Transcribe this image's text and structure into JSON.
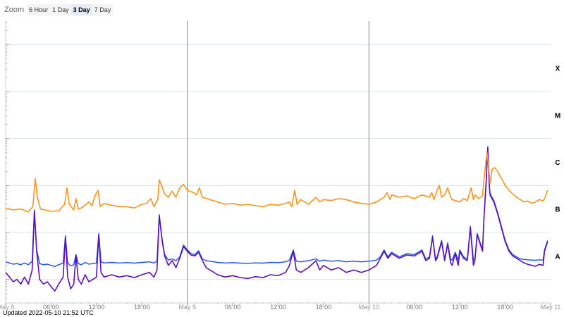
{
  "zoom": {
    "label": "Zoom",
    "buttons": [
      "6 Hour",
      "1 Day",
      "3 Day",
      "7 Day"
    ],
    "active": "3 Day"
  },
  "updated_text": "Updated 2022-05-10 21:52 UTC",
  "colors": {
    "series_long": "#F7941D",
    "series_short": "#5A11B8",
    "series_short_alt": "#1E4FE6",
    "grid": "#dde3ef",
    "day_divider": "#888888",
    "axis_text": "#777777",
    "axis_text_major": "#999999"
  },
  "chart_data": {
    "type": "line",
    "title": "",
    "xlabel": "",
    "ylabel": "",
    "x_range_hours": [
      0,
      72
    ],
    "x_ticks": [
      {
        "hour": 0,
        "label": "May 8",
        "major": true
      },
      {
        "hour": 6,
        "label": "06:00",
        "major": false
      },
      {
        "hour": 12,
        "label": "12:00",
        "major": false
      },
      {
        "hour": 18,
        "label": "18:00",
        "major": false
      },
      {
        "hour": 24,
        "label": "May 9",
        "major": true
      },
      {
        "hour": 30,
        "label": "06:00",
        "major": false
      },
      {
        "hour": 36,
        "label": "12:00",
        "major": false
      },
      {
        "hour": 42,
        "label": "18:00",
        "major": false
      },
      {
        "hour": 48,
        "label": "May 10",
        "major": true
      },
      {
        "hour": 54,
        "label": "06:00",
        "major": false
      },
      {
        "hour": 60,
        "label": "12:00",
        "major": false
      },
      {
        "hour": 66,
        "label": "18:00",
        "major": false
      },
      {
        "hour": 72,
        "label": "May 11",
        "major": true
      }
    ],
    "flare_classes": [
      "A",
      "B",
      "C",
      "M",
      "X"
    ],
    "class_log_levels": [
      -7.5,
      -6.5,
      -5.5,
      -4.5,
      -3.5
    ],
    "y_scale": "log",
    "y_range_log": [
      -8.5,
      -2.5
    ],
    "grid": true,
    "day_dividers_hours": [
      24,
      48
    ],
    "series": [
      {
        "key": "long",
        "values": [
          [
            0.0,
            -6.48
          ],
          [
            1.0,
            -6.52
          ],
          [
            2.0,
            -6.5
          ],
          [
            3.0,
            -6.56
          ],
          [
            3.6,
            -6.45
          ],
          [
            3.9,
            -5.85
          ],
          [
            4.2,
            -6.25
          ],
          [
            4.6,
            -6.5
          ],
          [
            6.0,
            -6.55
          ],
          [
            7.0,
            -6.54
          ],
          [
            7.8,
            -6.4
          ],
          [
            8.1,
            -6.05
          ],
          [
            8.4,
            -6.4
          ],
          [
            9.0,
            -6.52
          ],
          [
            9.3,
            -6.28
          ],
          [
            9.6,
            -6.5
          ],
          [
            10.0,
            -6.48
          ],
          [
            11.0,
            -6.35
          ],
          [
            11.4,
            -6.43
          ],
          [
            11.8,
            -6.22
          ],
          [
            12.2,
            -6.1
          ],
          [
            12.5,
            -6.45
          ],
          [
            13.0,
            -6.38
          ],
          [
            14.0,
            -6.42
          ],
          [
            15.0,
            -6.45
          ],
          [
            16.0,
            -6.45
          ],
          [
            17.0,
            -6.48
          ],
          [
            18.0,
            -6.4
          ],
          [
            18.6,
            -6.38
          ],
          [
            19.2,
            -6.28
          ],
          [
            19.6,
            -6.45
          ],
          [
            20.1,
            -6.3
          ],
          [
            20.3,
            -5.88
          ],
          [
            20.6,
            -6.0
          ],
          [
            21.0,
            -6.18
          ],
          [
            21.5,
            -6.25
          ],
          [
            22.0,
            -6.12
          ],
          [
            22.5,
            -6.25
          ],
          [
            23.0,
            -6.05
          ],
          [
            23.5,
            -5.98
          ],
          [
            24.0,
            -6.1
          ],
          [
            24.8,
            -6.15
          ],
          [
            25.2,
            -6.2
          ],
          [
            25.6,
            -6.05
          ],
          [
            26.0,
            -6.25
          ],
          [
            27.0,
            -6.3
          ],
          [
            28.0,
            -6.35
          ],
          [
            29.0,
            -6.4
          ],
          [
            30.0,
            -6.38
          ],
          [
            31.0,
            -6.42
          ],
          [
            32.0,
            -6.4
          ],
          [
            33.0,
            -6.43
          ],
          [
            34.0,
            -6.45
          ],
          [
            35.0,
            -6.4
          ],
          [
            36.0,
            -6.42
          ],
          [
            37.0,
            -6.38
          ],
          [
            37.5,
            -6.35
          ],
          [
            37.8,
            -6.45
          ],
          [
            38.2,
            -6.1
          ],
          [
            38.5,
            -6.4
          ],
          [
            39.0,
            -6.3
          ],
          [
            40.0,
            -6.4
          ],
          [
            41.0,
            -6.25
          ],
          [
            41.5,
            -6.35
          ],
          [
            42.0,
            -6.3
          ],
          [
            43.0,
            -6.32
          ],
          [
            44.0,
            -6.28
          ],
          [
            45.0,
            -6.3
          ],
          [
            46.0,
            -6.35
          ],
          [
            47.0,
            -6.38
          ],
          [
            48.0,
            -6.4
          ],
          [
            49.0,
            -6.35
          ],
          [
            50.0,
            -6.25
          ],
          [
            50.4,
            -6.15
          ],
          [
            50.8,
            -6.3
          ],
          [
            51.0,
            -6.2
          ],
          [
            52.0,
            -6.25
          ],
          [
            53.0,
            -6.22
          ],
          [
            54.0,
            -6.28
          ],
          [
            55.0,
            -6.2
          ],
          [
            56.0,
            -6.25
          ],
          [
            56.3,
            -6.15
          ],
          [
            56.6,
            -6.3
          ],
          [
            57.0,
            -6.1
          ],
          [
            57.3,
            -6.0
          ],
          [
            57.6,
            -6.25
          ],
          [
            58.0,
            -6.2
          ],
          [
            58.4,
            -6.05
          ],
          [
            58.8,
            -6.25
          ],
          [
            59.0,
            -6.3
          ],
          [
            60.0,
            -6.35
          ],
          [
            60.5,
            -6.28
          ],
          [
            61.0,
            -6.32
          ],
          [
            61.5,
            -6.05
          ],
          [
            61.8,
            -6.3
          ],
          [
            62.0,
            -6.2
          ],
          [
            62.5,
            -6.28
          ],
          [
            63.0,
            -6.22
          ],
          [
            63.3,
            -5.7
          ],
          [
            63.6,
            -5.3
          ],
          [
            63.9,
            -5.75
          ],
          [
            64.0,
            -5.95
          ],
          [
            64.3,
            -5.65
          ],
          [
            64.6,
            -5.62
          ],
          [
            65.0,
            -5.7
          ],
          [
            65.5,
            -5.85
          ],
          [
            66.0,
            -6.0
          ],
          [
            66.5,
            -6.1
          ],
          [
            67.0,
            -6.18
          ],
          [
            67.5,
            -6.25
          ],
          [
            68.0,
            -6.3
          ],
          [
            68.5,
            -6.35
          ],
          [
            69.0,
            -6.33
          ],
          [
            69.5,
            -6.38
          ],
          [
            70.0,
            -6.35
          ],
          [
            70.5,
            -6.3
          ],
          [
            71.0,
            -6.33
          ],
          [
            71.3,
            -6.25
          ],
          [
            71.6,
            -6.1
          ]
        ]
      },
      {
        "key": "short",
        "values": [
          [
            0.0,
            -7.85
          ],
          [
            0.5,
            -7.95
          ],
          [
            1.0,
            -8.05
          ],
          [
            1.5,
            -8.0
          ],
          [
            2.0,
            -8.1
          ],
          [
            2.5,
            -7.95
          ],
          [
            3.0,
            -8.1
          ],
          [
            3.5,
            -7.8
          ],
          [
            3.8,
            -6.55
          ],
          [
            4.1,
            -7.4
          ],
          [
            4.5,
            -8.0
          ],
          [
            5.0,
            -8.1
          ],
          [
            5.5,
            -8.05
          ],
          [
            6.0,
            -8.15
          ],
          [
            6.5,
            -8.25
          ],
          [
            7.0,
            -8.1
          ],
          [
            7.6,
            -7.95
          ],
          [
            7.9,
            -7.1
          ],
          [
            8.2,
            -7.95
          ],
          [
            8.6,
            -8.2
          ],
          [
            9.0,
            -8.1
          ],
          [
            9.3,
            -7.5
          ],
          [
            9.6,
            -8.0
          ],
          [
            10.0,
            -8.1
          ],
          [
            10.5,
            -7.9
          ],
          [
            11.0,
            -8.05
          ],
          [
            11.5,
            -8.0
          ],
          [
            12.0,
            -7.95
          ],
          [
            12.3,
            -7.05
          ],
          [
            12.6,
            -7.85
          ],
          [
            13.0,
            -7.95
          ],
          [
            14.0,
            -7.9
          ],
          [
            15.0,
            -7.95
          ],
          [
            16.0,
            -7.92
          ],
          [
            17.0,
            -7.96
          ],
          [
            18.0,
            -7.9
          ],
          [
            19.0,
            -7.85
          ],
          [
            19.6,
            -7.95
          ],
          [
            20.0,
            -7.8
          ],
          [
            20.3,
            -6.65
          ],
          [
            20.7,
            -7.2
          ],
          [
            21.0,
            -7.5
          ],
          [
            21.5,
            -7.7
          ],
          [
            22.0,
            -7.6
          ],
          [
            22.5,
            -7.75
          ],
          [
            23.0,
            -7.55
          ],
          [
            23.5,
            -7.3
          ],
          [
            24.0,
            -7.4
          ],
          [
            24.5,
            -7.48
          ],
          [
            25.0,
            -7.5
          ],
          [
            25.5,
            -7.42
          ],
          [
            26.0,
            -7.6
          ],
          [
            26.5,
            -7.75
          ],
          [
            27.0,
            -7.8
          ],
          [
            28.0,
            -7.9
          ],
          [
            29.0,
            -7.95
          ],
          [
            30.0,
            -7.92
          ],
          [
            31.0,
            -7.96
          ],
          [
            32.0,
            -7.98
          ],
          [
            33.0,
            -7.94
          ],
          [
            34.0,
            -7.96
          ],
          [
            35.0,
            -7.9
          ],
          [
            36.0,
            -7.92
          ],
          [
            37.0,
            -7.85
          ],
          [
            37.5,
            -7.7
          ],
          [
            38.0,
            -7.4
          ],
          [
            38.4,
            -7.8
          ],
          [
            39.0,
            -7.85
          ],
          [
            40.0,
            -7.75
          ],
          [
            41.0,
            -7.6
          ],
          [
            41.5,
            -7.8
          ],
          [
            42.0,
            -7.7
          ],
          [
            43.0,
            -7.8
          ],
          [
            44.0,
            -7.75
          ],
          [
            45.0,
            -7.85
          ],
          [
            46.0,
            -7.8
          ],
          [
            47.0,
            -7.85
          ],
          [
            48.0,
            -7.8
          ],
          [
            49.0,
            -7.7
          ],
          [
            49.5,
            -7.55
          ],
          [
            50.0,
            -7.4
          ],
          [
            50.5,
            -7.55
          ],
          [
            51.0,
            -7.45
          ],
          [
            52.0,
            -7.55
          ],
          [
            53.0,
            -7.48
          ],
          [
            54.0,
            -7.5
          ],
          [
            55.0,
            -7.4
          ],
          [
            55.5,
            -7.6
          ],
          [
            56.0,
            -7.55
          ],
          [
            56.4,
            -7.1
          ],
          [
            56.8,
            -7.6
          ],
          [
            57.0,
            -7.55
          ],
          [
            57.6,
            -7.2
          ],
          [
            58.0,
            -7.6
          ],
          [
            58.4,
            -7.25
          ],
          [
            58.8,
            -7.65
          ],
          [
            59.0,
            -7.7
          ],
          [
            59.4,
            -7.45
          ],
          [
            59.8,
            -7.7
          ],
          [
            60.0,
            -7.4
          ],
          [
            60.5,
            -7.55
          ],
          [
            61.0,
            -7.6
          ],
          [
            61.4,
            -6.9
          ],
          [
            61.8,
            -7.7
          ],
          [
            62.0,
            -7.6
          ],
          [
            62.3,
            -7.05
          ],
          [
            62.6,
            -7.2
          ],
          [
            63.0,
            -7.4
          ],
          [
            63.2,
            -6.7
          ],
          [
            63.5,
            -5.9
          ],
          [
            63.7,
            -5.2
          ],
          [
            63.9,
            -6.0
          ],
          [
            64.0,
            -6.2
          ],
          [
            64.5,
            -6.35
          ],
          [
            65.0,
            -6.6
          ],
          [
            65.5,
            -6.9
          ],
          [
            66.0,
            -7.2
          ],
          [
            66.5,
            -7.4
          ],
          [
            67.0,
            -7.5
          ],
          [
            67.5,
            -7.55
          ],
          [
            68.0,
            -7.6
          ],
          [
            68.5,
            -7.65
          ],
          [
            69.0,
            -7.68
          ],
          [
            69.5,
            -7.7
          ],
          [
            70.0,
            -7.72
          ],
          [
            70.5,
            -7.68
          ],
          [
            71.0,
            -7.7
          ],
          [
            71.2,
            -7.4
          ],
          [
            71.6,
            -7.2
          ]
        ]
      }
    ]
  }
}
